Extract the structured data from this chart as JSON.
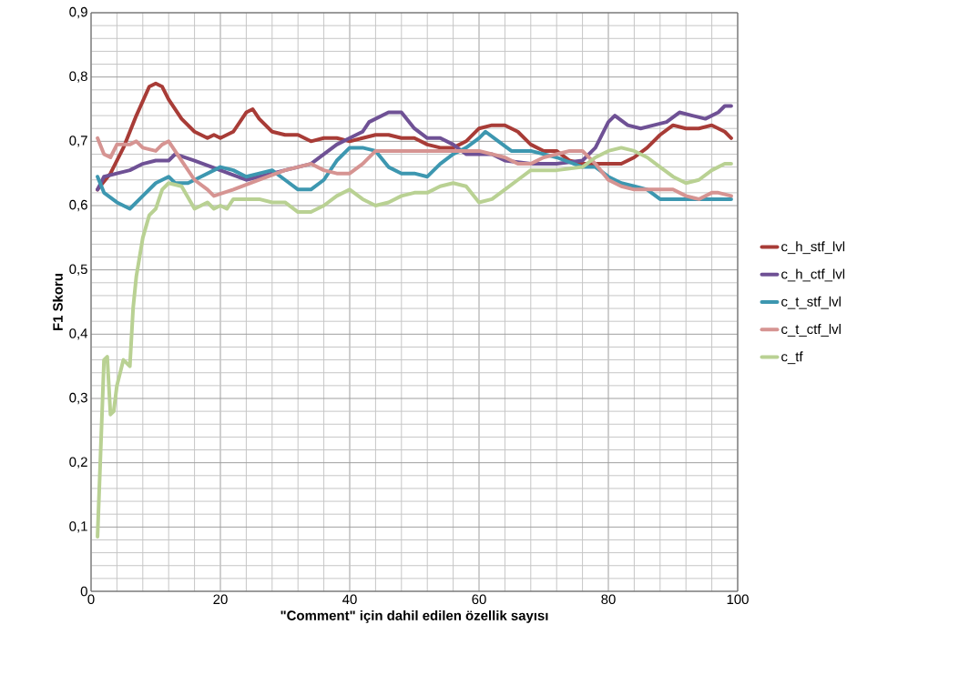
{
  "chart_data": {
    "type": "line",
    "xlabel": "\"Comment\" için dahil edilen özellik sayısı",
    "ylabel": "F1 Skoru",
    "xlim": [
      0,
      100
    ],
    "ylim": [
      0,
      0.9
    ],
    "xticks": [
      0,
      20,
      40,
      60,
      80,
      100
    ],
    "yticks": [
      {
        "value": 0,
        "label": "0"
      },
      {
        "value": 0.1,
        "label": "0,1"
      },
      {
        "value": 0.2,
        "label": "0,2"
      },
      {
        "value": 0.3,
        "label": "0,3"
      },
      {
        "value": 0.4,
        "label": "0,4"
      },
      {
        "value": 0.5,
        "label": "0,5"
      },
      {
        "value": 0.6,
        "label": "0,6"
      },
      {
        "value": 0.7,
        "label": "0,7"
      },
      {
        "value": 0.8,
        "label": "0,8"
      },
      {
        "value": 0.9,
        "label": "0,9"
      }
    ],
    "grid": true,
    "legend": "right",
    "marker": "none",
    "line_style": "solid",
    "series": [
      {
        "name": "c_h_stf_lvl",
        "color": "#a83c37",
        "x": [
          1,
          3,
          5,
          7,
          9,
          10,
          11,
          12,
          14,
          16,
          18,
          19,
          20,
          22,
          24,
          25,
          26,
          28,
          30,
          32,
          34,
          36,
          38,
          40,
          42,
          44,
          46,
          48,
          50,
          52,
          54,
          56,
          58,
          60,
          62,
          64,
          66,
          68,
          70,
          72,
          74,
          76,
          78,
          80,
          82,
          84,
          86,
          88,
          90,
          92,
          94,
          96,
          98,
          99
        ],
        "values": [
          0.625,
          0.65,
          0.69,
          0.74,
          0.785,
          0.79,
          0.785,
          0.765,
          0.735,
          0.715,
          0.705,
          0.71,
          0.705,
          0.715,
          0.745,
          0.75,
          0.735,
          0.715,
          0.71,
          0.71,
          0.7,
          0.705,
          0.705,
          0.7,
          0.705,
          0.71,
          0.71,
          0.705,
          0.705,
          0.695,
          0.69,
          0.69,
          0.7,
          0.72,
          0.725,
          0.725,
          0.715,
          0.695,
          0.685,
          0.685,
          0.67,
          0.665,
          0.665,
          0.665,
          0.665,
          0.675,
          0.69,
          0.71,
          0.725,
          0.72,
          0.72,
          0.725,
          0.715,
          0.705
        ]
      },
      {
        "name": "c_h_ctf_lvl",
        "color": "#6f5195",
        "x": [
          1,
          2,
          4,
          6,
          8,
          10,
          12,
          13,
          16,
          20,
          24,
          26,
          30,
          34,
          36,
          38,
          40,
          42,
          43,
          46,
          48,
          50,
          52,
          54,
          56,
          58,
          60,
          62,
          64,
          68,
          72,
          76,
          78,
          80,
          81,
          83,
          85,
          87,
          89,
          91,
          93,
          95,
          97,
          98,
          99
        ],
        "values": [
          0.625,
          0.645,
          0.65,
          0.655,
          0.665,
          0.67,
          0.67,
          0.68,
          0.67,
          0.655,
          0.64,
          0.645,
          0.655,
          0.665,
          0.68,
          0.695,
          0.705,
          0.715,
          0.73,
          0.745,
          0.745,
          0.72,
          0.705,
          0.705,
          0.695,
          0.68,
          0.68,
          0.68,
          0.67,
          0.665,
          0.665,
          0.67,
          0.69,
          0.73,
          0.74,
          0.725,
          0.72,
          0.725,
          0.73,
          0.745,
          0.74,
          0.735,
          0.745,
          0.755,
          0.755
        ]
      },
      {
        "name": "c_t_stf_lvl",
        "color": "#3d97b0",
        "x": [
          1,
          2,
          4,
          6,
          8,
          10,
          12,
          13,
          15,
          17,
          20,
          22,
          24,
          26,
          28,
          30,
          32,
          34,
          36,
          38,
          40,
          42,
          44,
          46,
          48,
          50,
          52,
          54,
          56,
          58,
          60,
          61,
          63,
          65,
          68,
          72,
          76,
          78,
          80,
          82,
          84,
          86,
          88,
          90,
          95,
          99
        ],
        "values": [
          0.645,
          0.62,
          0.605,
          0.595,
          0.615,
          0.635,
          0.645,
          0.635,
          0.635,
          0.645,
          0.66,
          0.655,
          0.645,
          0.65,
          0.655,
          0.64,
          0.625,
          0.625,
          0.64,
          0.67,
          0.69,
          0.69,
          0.685,
          0.66,
          0.65,
          0.65,
          0.645,
          0.665,
          0.68,
          0.69,
          0.705,
          0.715,
          0.7,
          0.685,
          0.685,
          0.675,
          0.66,
          0.66,
          0.645,
          0.635,
          0.63,
          0.625,
          0.61,
          0.61,
          0.61,
          0.61
        ]
      },
      {
        "name": "c_t_ctf_lvl",
        "color": "#d69492",
        "x": [
          1,
          2,
          3,
          4,
          6,
          7,
          8,
          10,
          11,
          12,
          14,
          16,
          18,
          19,
          22,
          26,
          30,
          34,
          36,
          38,
          40,
          42,
          44,
          48,
          60,
          64,
          66,
          68,
          70,
          72,
          74,
          76,
          78,
          80,
          82,
          84,
          88,
          90,
          92,
          94,
          96,
          97,
          99
        ],
        "values": [
          0.705,
          0.68,
          0.675,
          0.695,
          0.695,
          0.7,
          0.69,
          0.685,
          0.695,
          0.7,
          0.67,
          0.64,
          0.625,
          0.615,
          0.625,
          0.64,
          0.655,
          0.665,
          0.655,
          0.65,
          0.65,
          0.665,
          0.685,
          0.685,
          0.685,
          0.675,
          0.665,
          0.665,
          0.675,
          0.68,
          0.685,
          0.685,
          0.665,
          0.64,
          0.63,
          0.625,
          0.625,
          0.625,
          0.615,
          0.61,
          0.62,
          0.62,
          0.615
        ]
      },
      {
        "name": "c_tf",
        "color": "#b9d193",
        "x": [
          1,
          2,
          2.5,
          3,
          3.5,
          4,
          5,
          6,
          6.5,
          7,
          8,
          9,
          10,
          11,
          12,
          14,
          16,
          17,
          18,
          19,
          20,
          21,
          22,
          24,
          26,
          28,
          30,
          32,
          34,
          36,
          38,
          40,
          42,
          44,
          46,
          48,
          50,
          52,
          54,
          56,
          58,
          60,
          62,
          64,
          66,
          68,
          72,
          76,
          78,
          80,
          82,
          84,
          86,
          88,
          90,
          92,
          94,
          96,
          98,
          99
        ],
        "values": [
          0.085,
          0.36,
          0.365,
          0.275,
          0.28,
          0.32,
          0.36,
          0.35,
          0.44,
          0.49,
          0.55,
          0.585,
          0.595,
          0.625,
          0.635,
          0.63,
          0.595,
          0.6,
          0.605,
          0.595,
          0.6,
          0.595,
          0.61,
          0.61,
          0.61,
          0.605,
          0.605,
          0.59,
          0.59,
          0.6,
          0.615,
          0.625,
          0.61,
          0.6,
          0.605,
          0.615,
          0.62,
          0.62,
          0.63,
          0.635,
          0.63,
          0.605,
          0.61,
          0.625,
          0.64,
          0.655,
          0.655,
          0.66,
          0.675,
          0.685,
          0.69,
          0.685,
          0.675,
          0.66,
          0.645,
          0.635,
          0.64,
          0.655,
          0.665,
          0.665
        ]
      }
    ]
  }
}
